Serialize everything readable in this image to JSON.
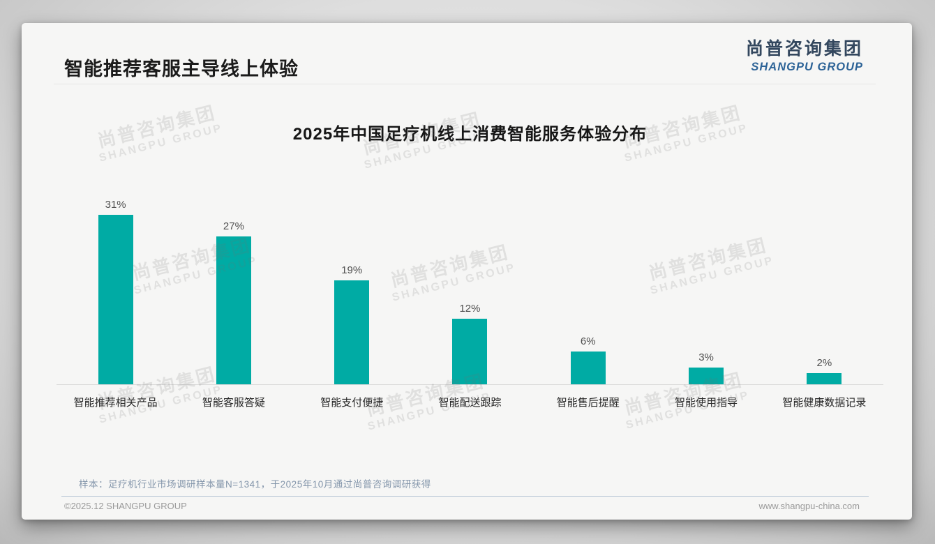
{
  "page": {
    "slide_title": "智能推荐客服主导线上体验",
    "logo": {
      "cn": "尚普咨询集团",
      "en": "SHANGPU GROUP"
    },
    "watermark": {
      "line1": "尚普咨询集团",
      "line2": "SHANGPU GROUP"
    },
    "note": "样本：足疗机行业市场调研样本量N=1341，于2025年10月通过尚普咨询调研获得",
    "footer": {
      "left": "©2025.12 SHANGPU GROUP",
      "right": "www.shangpu-china.com"
    }
  },
  "chart_data": {
    "type": "bar",
    "title": "2025年中国足疗机线上消费智能服务体验分布",
    "categories": [
      "智能推荐相关产品",
      "智能客服答疑",
      "智能支付便捷",
      "智能配送跟踪",
      "智能售后提醒",
      "智能使用指导",
      "智能健康数据记录"
    ],
    "values": [
      31,
      27,
      19,
      12,
      6,
      3,
      2
    ],
    "value_labels": [
      "31%",
      "27%",
      "19%",
      "12%",
      "6%",
      "3%",
      "2%"
    ],
    "unit": "%",
    "bar_color": "#00ABA4",
    "xlabel": "",
    "ylabel": "",
    "ylim": [
      0,
      33
    ],
    "grid": false,
    "legend": false
  }
}
